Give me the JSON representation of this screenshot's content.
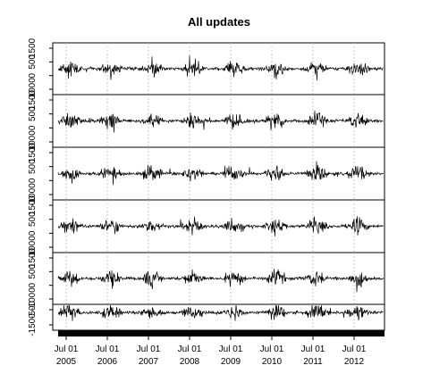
{
  "chart_data": {
    "type": "line",
    "title": "All updates",
    "xlabel": "",
    "ylabel": "",
    "grid": true,
    "x_ticks": [
      {
        "top": "Jul 01",
        "bottom": "2005"
      },
      {
        "top": "Jul 01",
        "bottom": "2006"
      },
      {
        "top": "Jul 01",
        "bottom": "2007"
      },
      {
        "top": "Jul 01",
        "bottom": "2008"
      },
      {
        "top": "Jul 01",
        "bottom": "2009"
      },
      {
        "top": "Jul 01",
        "bottom": "2010"
      },
      {
        "top": "Jul 01",
        "bottom": "2011"
      },
      {
        "top": "Jul 01",
        "bottom": "2012"
      }
    ],
    "xlim": [
      "2005-04-01",
      "2013-01-15"
    ],
    "panels": [
      {
        "yticks": [
          "1500",
          "500",
          "0",
          "-1000"
        ],
        "ylim": [
          -1500,
          1500
        ]
      },
      {
        "yticks": [
          "1500",
          "500",
          "0",
          "-1000"
        ],
        "ylim": [
          -1500,
          1500
        ]
      },
      {
        "yticks": [
          "1500",
          "500",
          "0",
          "-1000"
        ],
        "ylim": [
          -1500,
          1500
        ]
      },
      {
        "yticks": [
          "1500",
          "500",
          "0",
          "-1000"
        ],
        "ylim": [
          -1500,
          1500
        ]
      },
      {
        "yticks": [
          "1500",
          "500",
          "0",
          "-1000"
        ],
        "ylim": [
          -1500,
          1500
        ]
      },
      {
        "yticks": [
          "-500",
          "-1500"
        ],
        "ylim": [
          -1500,
          500
        ]
      }
    ]
  }
}
